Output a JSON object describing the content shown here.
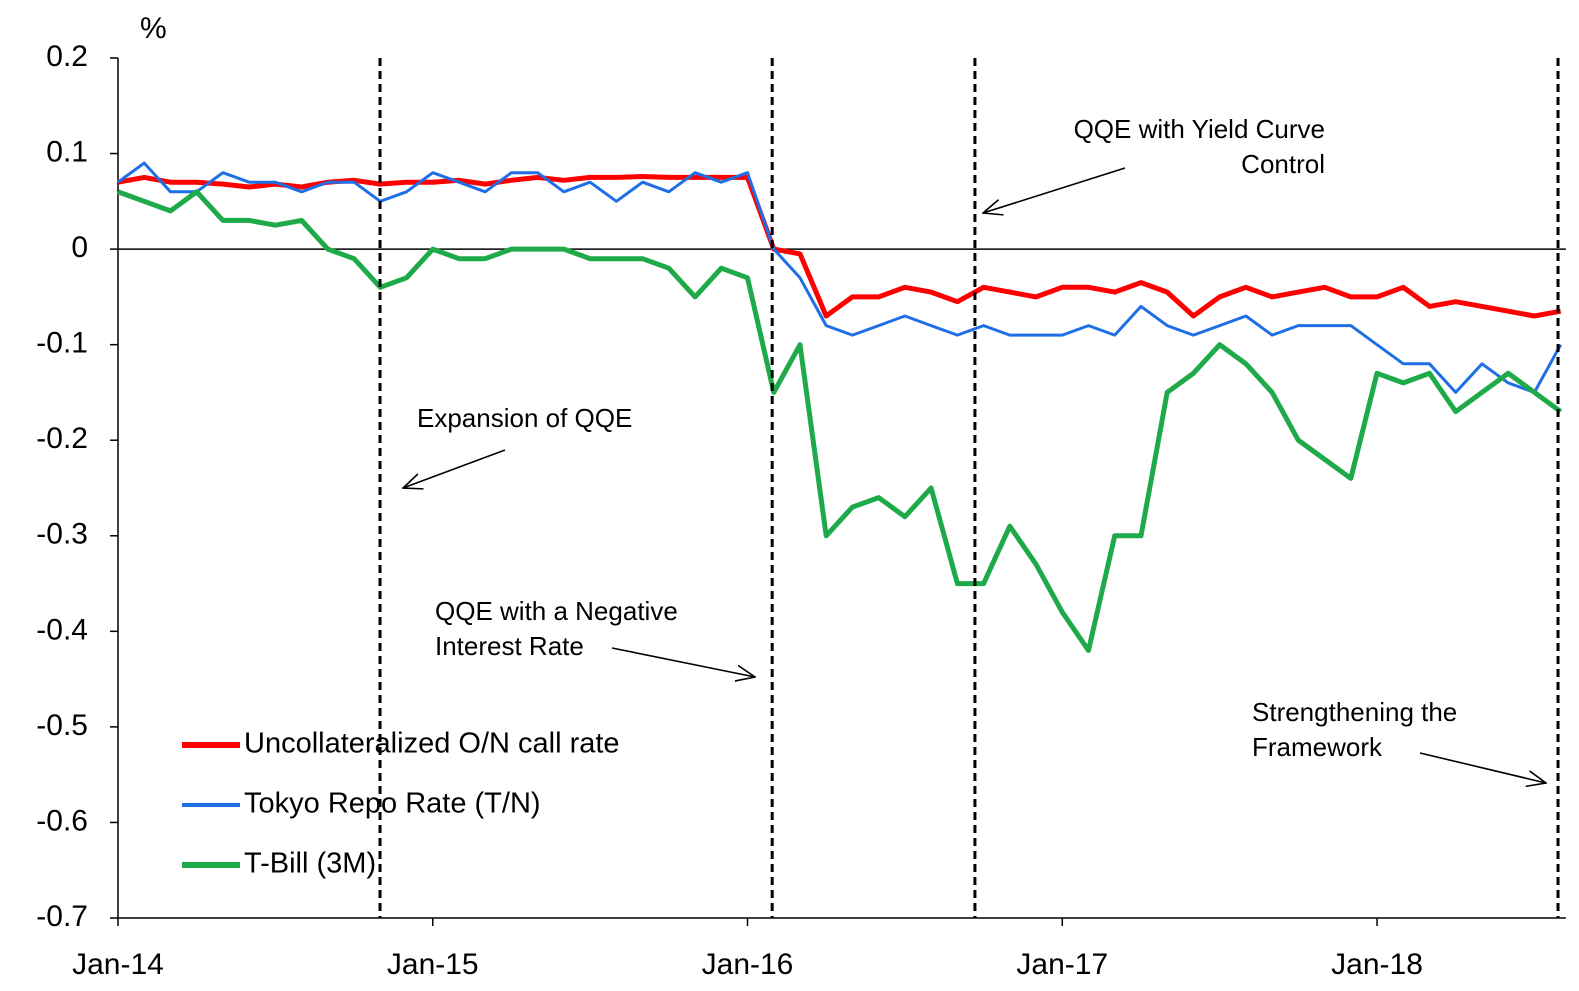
{
  "chart_data": {
    "type": "line",
    "y_unit": "%",
    "categories": [
      "Jan-14",
      null,
      null,
      null,
      null,
      null,
      null,
      null,
      null,
      null,
      null,
      null,
      "Jan-15",
      null,
      null,
      null,
      null,
      null,
      null,
      null,
      null,
      null,
      null,
      null,
      "Jan-16",
      null,
      null,
      null,
      null,
      null,
      null,
      null,
      null,
      null,
      null,
      null,
      "Jan-17",
      null,
      null,
      null,
      null,
      null,
      null,
      null,
      null,
      null,
      null,
      null,
      "Jan-18",
      null,
      null,
      null,
      null,
      null,
      null,
      null
    ],
    "series": [
      {
        "name": "Uncollateralized O/N call rate",
        "color": "#ff0000",
        "width": 5,
        "values": [
          0.07,
          0.075,
          0.07,
          0.07,
          0.068,
          0.065,
          0.068,
          0.065,
          0.07,
          0.072,
          0.068,
          0.07,
          0.07,
          0.072,
          0.068,
          0.072,
          0.075,
          0.072,
          0.075,
          0.075,
          0.076,
          0.075,
          0.075,
          0.075,
          0.075,
          0.0,
          -0.005,
          -0.07,
          -0.05,
          -0.05,
          -0.04,
          -0.045,
          -0.055,
          -0.04,
          -0.045,
          -0.05,
          -0.04,
          -0.04,
          -0.045,
          -0.035,
          -0.045,
          -0.07,
          -0.05,
          -0.04,
          -0.05,
          -0.045,
          -0.04,
          -0.05,
          -0.05,
          -0.04,
          -0.06,
          -0.055,
          -0.06,
          -0.065,
          -0.07,
          -0.065
        ]
      },
      {
        "name": "Tokyo Repo Rate (T/N)",
        "color": "#1e6fe6",
        "width": 3,
        "values": [
          0.07,
          0.09,
          0.06,
          0.06,
          0.08,
          0.07,
          0.07,
          0.06,
          0.07,
          0.07,
          0.05,
          0.06,
          0.08,
          0.07,
          0.06,
          0.08,
          0.08,
          0.06,
          0.07,
          0.05,
          0.07,
          0.06,
          0.08,
          0.07,
          0.08,
          0.0,
          -0.03,
          -0.08,
          -0.09,
          -0.08,
          -0.07,
          -0.08,
          -0.09,
          -0.08,
          -0.09,
          -0.09,
          -0.09,
          -0.08,
          -0.09,
          -0.06,
          -0.08,
          -0.09,
          -0.08,
          -0.07,
          -0.09,
          -0.08,
          -0.08,
          -0.08,
          -0.1,
          -0.12,
          -0.12,
          -0.15,
          -0.12,
          -0.14,
          -0.15,
          -0.1
        ]
      },
      {
        "name": "T-Bill (3M)",
        "color": "#1faa4a",
        "width": 5,
        "values": [
          0.06,
          0.05,
          0.04,
          0.06,
          0.03,
          0.03,
          0.025,
          0.03,
          0.0,
          -0.01,
          -0.04,
          -0.03,
          0.0,
          -0.01,
          -0.01,
          0.0,
          0.0,
          0.0,
          -0.01,
          -0.01,
          -0.01,
          -0.02,
          -0.05,
          -0.02,
          -0.03,
          -0.15,
          -0.1,
          -0.3,
          -0.27,
          -0.26,
          -0.28,
          -0.25,
          -0.35,
          -0.35,
          -0.29,
          -0.33,
          -0.38,
          -0.42,
          -0.3,
          -0.3,
          -0.15,
          -0.13,
          -0.1,
          -0.12,
          -0.15,
          -0.2,
          -0.22,
          -0.24,
          -0.13,
          -0.14,
          -0.13,
          -0.17,
          -0.15,
          -0.13,
          -0.15,
          -0.17
        ]
      }
    ],
    "xlim": [
      0,
      55.2
    ],
    "ylim": [
      -0.7,
      0.2
    ],
    "yticks": [
      0.2,
      0.1,
      0,
      -0.1,
      -0.2,
      -0.3,
      -0.4,
      -0.5,
      -0.6,
      -0.7
    ],
    "event_lines": [
      9.99,
      24.94,
      32.67,
      54.9
    ],
    "annotations": [
      [
        "Expansion of QQE"
      ],
      [
        "QQE with a Negative",
        "Interest Rate"
      ],
      [
        "QQE with Yield Curve",
        "Control"
      ],
      [
        "Strengthening the",
        "Framework"
      ]
    ]
  }
}
